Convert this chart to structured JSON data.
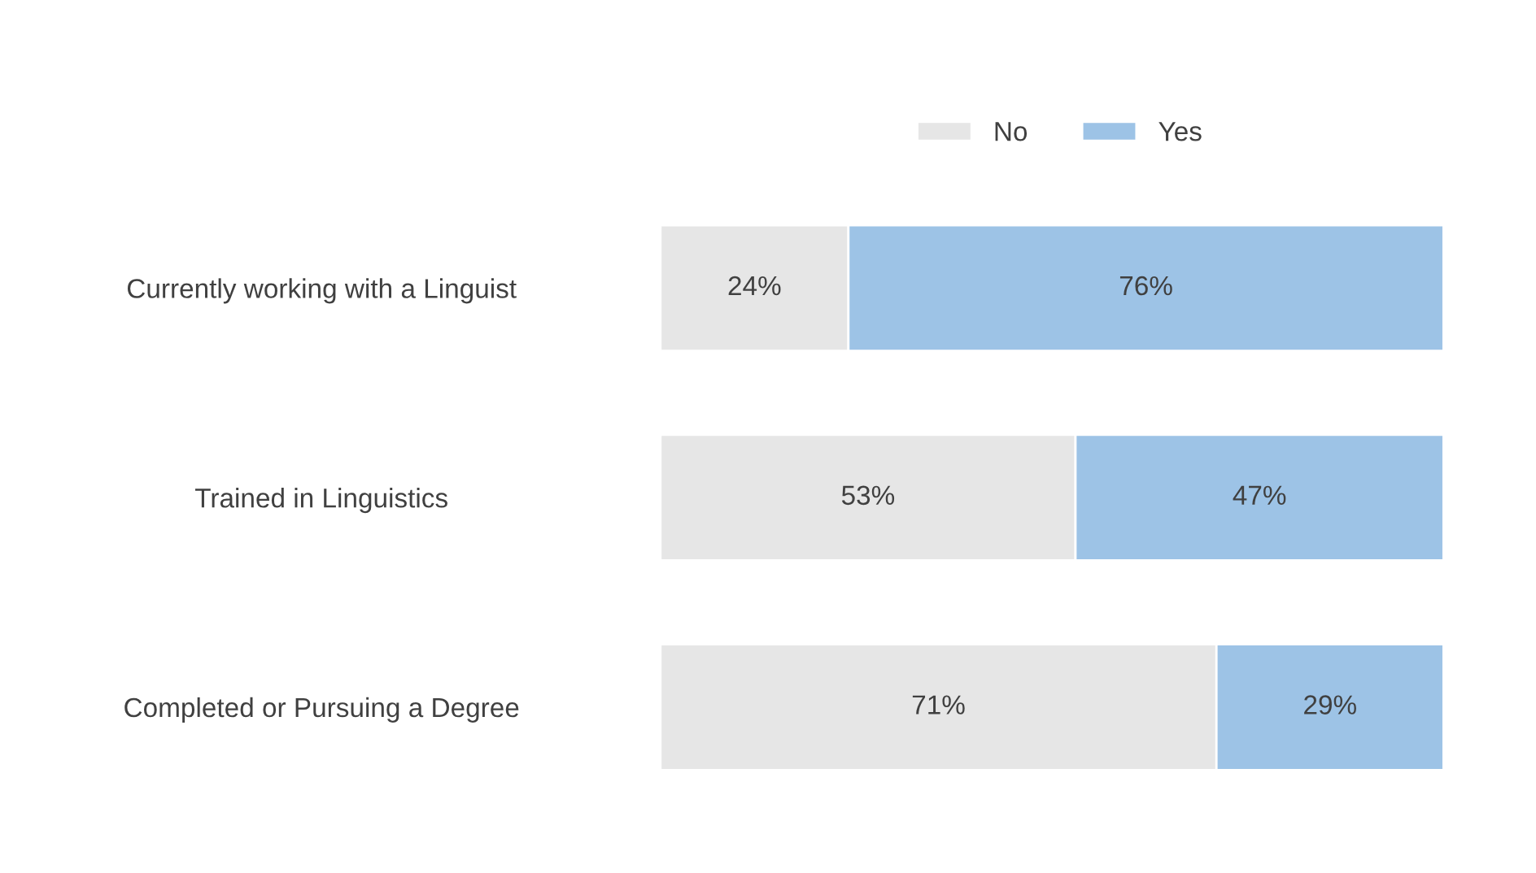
{
  "chart_data": {
    "type": "bar",
    "orientation": "horizontal",
    "stacked": true,
    "categories": [
      "Currently working with a Linguist",
      "Trained in Linguistics",
      "Completed or Pursuing a Degree"
    ],
    "series": [
      {
        "name": "No",
        "color": "#e6e6e6",
        "values": [
          24,
          53,
          71
        ],
        "value_labels": [
          "24%",
          "53%",
          "71%"
        ]
      },
      {
        "name": "Yes",
        "color": "#9dc3e6",
        "values": [
          76,
          47,
          29
        ],
        "value_labels": [
          "76%",
          "47%",
          "29%"
        ]
      }
    ],
    "legend": "top",
    "grid": false,
    "tick_labels": "y"
  }
}
